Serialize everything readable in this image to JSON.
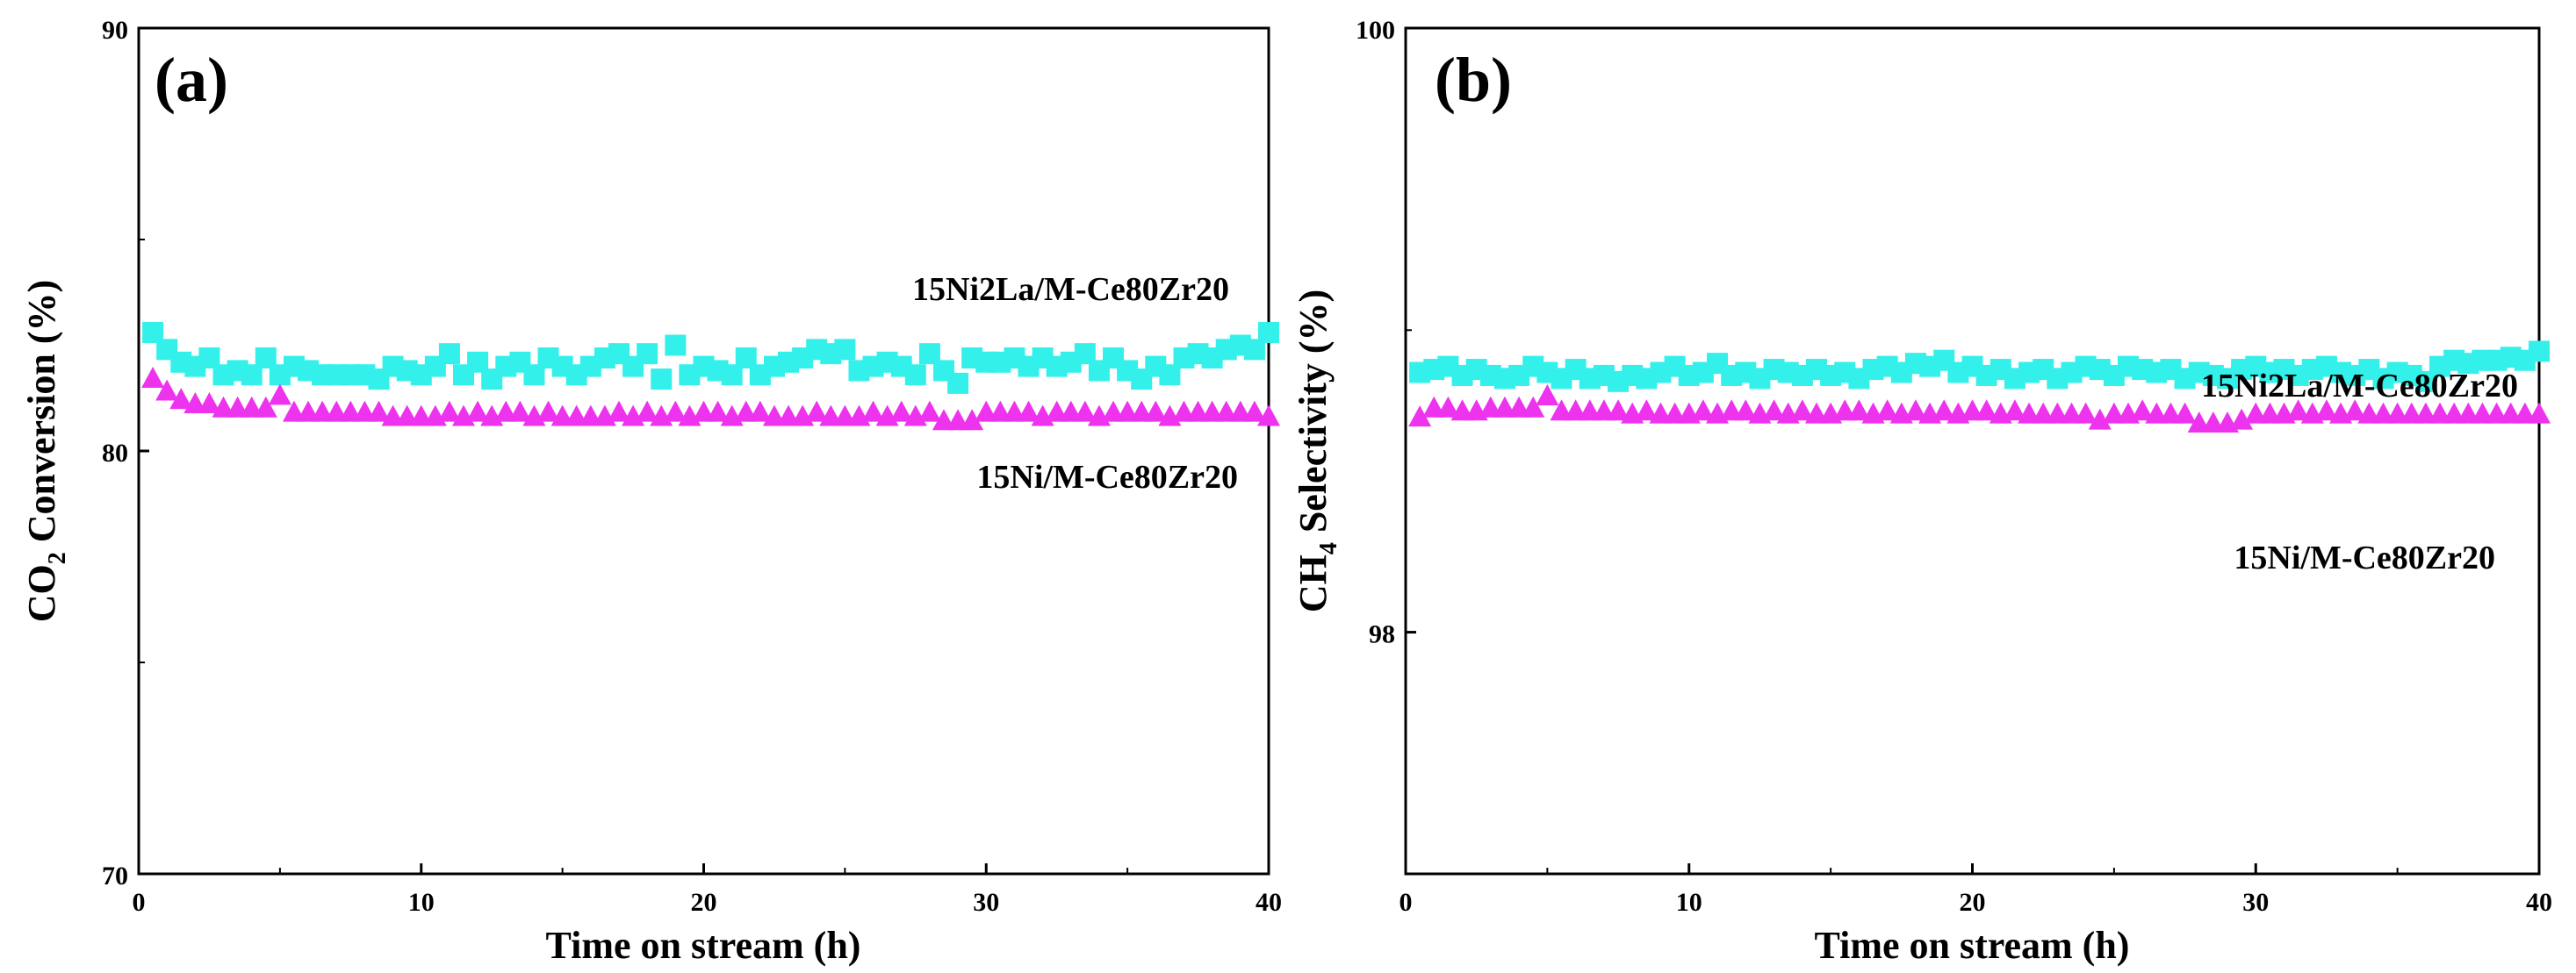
{
  "chart_data": [
    {
      "type": "scatter",
      "panel_label": "(a)",
      "xlabel": "Time on stream (h)",
      "ylabel": {
        "prefix": "CO",
        "sub": "2",
        "suffix": " Conversion (%)"
      },
      "xlim": [
        0,
        40
      ],
      "ylim": [
        70,
        90
      ],
      "xticks": [
        "0",
        "10",
        "20",
        "30",
        "40"
      ],
      "yticks": [
        "70",
        "80",
        "90"
      ],
      "series": [
        {
          "name": "15Ni2La/M-Ce80Zr20",
          "marker": "square",
          "color": "#33f0ea",
          "x": [
            0.5,
            1.0,
            1.5,
            2.0,
            2.5,
            3.0,
            3.5,
            4.0,
            4.5,
            5.0,
            5.5,
            6.0,
            6.5,
            7.0,
            7.5,
            8.0,
            8.5,
            9.0,
            9.5,
            10.0,
            10.5,
            11.0,
            11.5,
            12.0,
            12.5,
            13.0,
            13.5,
            14.0,
            14.5,
            15.0,
            15.5,
            16.0,
            16.5,
            17.0,
            17.5,
            18.0,
            18.5,
            19.0,
            19.5,
            20.0,
            20.5,
            21.0,
            21.5,
            22.0,
            22.5,
            23.0,
            23.5,
            24.0,
            24.5,
            25.0,
            25.5,
            26.0,
            26.5,
            27.0,
            27.5,
            28.0,
            28.5,
            29.0,
            29.5,
            30.0,
            30.5,
            31.0,
            31.5,
            32.0,
            32.5,
            33.0,
            33.5,
            34.0,
            34.5,
            35.0,
            35.5,
            36.0,
            36.5,
            37.0,
            37.5,
            38.0,
            38.5,
            39.0,
            39.5,
            40.0
          ],
          "values": [
            82.8,
            82.4,
            82.1,
            82.0,
            82.2,
            81.8,
            81.9,
            81.8,
            82.2,
            81.8,
            82.0,
            81.9,
            81.8,
            81.8,
            81.8,
            81.8,
            81.7,
            82.0,
            81.9,
            81.8,
            82.0,
            82.3,
            81.8,
            82.1,
            81.7,
            82.0,
            82.1,
            81.8,
            82.2,
            82.0,
            81.8,
            82.0,
            82.2,
            82.3,
            82.0,
            82.3,
            81.7,
            82.5,
            81.8,
            82.0,
            81.9,
            81.8,
            82.2,
            81.8,
            82.0,
            82.1,
            82.2,
            82.4,
            82.3,
            82.4,
            81.9,
            82.0,
            82.1,
            82.0,
            81.8,
            82.3,
            81.9,
            81.6,
            82.2,
            82.1,
            82.1,
            82.2,
            82.0,
            82.2,
            82.0,
            82.1,
            82.3,
            81.9,
            82.2,
            81.9,
            81.7,
            82.0,
            81.8,
            82.2,
            82.3,
            82.2,
            82.4,
            82.5,
            82.4,
            82.8
          ]
        },
        {
          "name": "15Ni/M-Ce80Zr20",
          "marker": "triangle",
          "color": "#ee33ee",
          "x": [
            0.5,
            1.0,
            1.5,
            2.0,
            2.5,
            3.0,
            3.5,
            4.0,
            4.5,
            5.0,
            5.5,
            6.0,
            6.5,
            7.0,
            7.5,
            8.0,
            8.5,
            9.0,
            9.5,
            10.0,
            10.5,
            11.0,
            11.5,
            12.0,
            12.5,
            13.0,
            13.5,
            14.0,
            14.5,
            15.0,
            15.5,
            16.0,
            16.5,
            17.0,
            17.5,
            18.0,
            18.5,
            19.0,
            19.5,
            20.0,
            20.5,
            21.0,
            21.5,
            22.0,
            22.5,
            23.0,
            23.5,
            24.0,
            24.5,
            25.0,
            25.5,
            26.0,
            26.5,
            27.0,
            27.5,
            28.0,
            28.5,
            29.0,
            29.5,
            30.0,
            30.5,
            31.0,
            31.5,
            32.0,
            32.5,
            33.0,
            33.5,
            34.0,
            34.5,
            35.0,
            35.5,
            36.0,
            36.5,
            37.0,
            37.5,
            38.0,
            38.5,
            39.0,
            39.5,
            40.0
          ],
          "values": [
            81.7,
            81.4,
            81.2,
            81.1,
            81.1,
            81.0,
            81.0,
            81.0,
            81.0,
            81.3,
            80.9,
            80.9,
            80.9,
            80.9,
            80.9,
            80.9,
            80.9,
            80.8,
            80.8,
            80.8,
            80.8,
            80.9,
            80.8,
            80.9,
            80.8,
            80.9,
            80.9,
            80.8,
            80.9,
            80.8,
            80.8,
            80.8,
            80.8,
            80.9,
            80.8,
            80.9,
            80.8,
            80.9,
            80.8,
            80.9,
            80.9,
            80.8,
            80.9,
            80.9,
            80.8,
            80.8,
            80.8,
            80.9,
            80.8,
            80.8,
            80.8,
            80.9,
            80.8,
            80.9,
            80.8,
            80.9,
            80.7,
            80.7,
            80.7,
            80.9,
            80.9,
            80.9,
            80.9,
            80.8,
            80.9,
            80.9,
            80.9,
            80.8,
            80.9,
            80.9,
            80.9,
            80.9,
            80.8,
            80.9,
            80.9,
            80.9,
            80.9,
            80.9,
            80.9,
            80.8
          ]
        }
      ]
    },
    {
      "type": "scatter",
      "panel_label": "(b)",
      "xlabel": "Time on stream (h)",
      "ylabel": {
        "prefix": "CH",
        "sub": "4",
        "suffix": " Selectivity (%)"
      },
      "xlim": [
        0,
        40
      ],
      "ylim": [
        97.2,
        100
      ],
      "xticks": [
        "0",
        "10",
        "20",
        "30",
        "40"
      ],
      "yticks": [
        "98",
        "100"
      ],
      "ytick_values": [
        98,
        100
      ],
      "series": [
        {
          "name": "15Ni2La/M-Ce80Zr20",
          "marker": "square",
          "color": "#33f0ea",
          "x": [
            0.5,
            1.0,
            1.5,
            2.0,
            2.5,
            3.0,
            3.5,
            4.0,
            4.5,
            5.0,
            5.5,
            6.0,
            6.5,
            7.0,
            7.5,
            8.0,
            8.5,
            9.0,
            9.5,
            10.0,
            10.5,
            11.0,
            11.5,
            12.0,
            12.5,
            13.0,
            13.5,
            14.0,
            14.5,
            15.0,
            15.5,
            16.0,
            16.5,
            17.0,
            17.5,
            18.0,
            18.5,
            19.0,
            19.5,
            20.0,
            20.5,
            21.0,
            21.5,
            22.0,
            22.5,
            23.0,
            23.5,
            24.0,
            24.5,
            25.0,
            25.5,
            26.0,
            26.5,
            27.0,
            27.5,
            28.0,
            28.5,
            29.0,
            29.5,
            30.0,
            30.5,
            31.0,
            31.5,
            32.0,
            32.5,
            33.0,
            33.5,
            34.0,
            34.5,
            35.0,
            35.5,
            36.0,
            36.5,
            37.0,
            37.5,
            38.0,
            38.5,
            39.0,
            39.5,
            40.0
          ],
          "values": [
            98.86,
            98.87,
            98.88,
            98.85,
            98.87,
            98.85,
            98.84,
            98.85,
            98.88,
            98.86,
            98.84,
            98.87,
            98.84,
            98.85,
            98.83,
            98.85,
            98.84,
            98.86,
            98.88,
            98.85,
            98.86,
            98.89,
            98.85,
            98.86,
            98.84,
            98.87,
            98.86,
            98.85,
            98.87,
            98.85,
            98.86,
            98.84,
            98.87,
            98.88,
            98.86,
            98.89,
            98.88,
            98.9,
            98.86,
            98.88,
            98.85,
            98.87,
            98.84,
            98.86,
            98.87,
            98.84,
            98.86,
            98.88,
            98.87,
            98.85,
            98.88,
            98.87,
            98.86,
            98.87,
            98.84,
            98.86,
            98.85,
            98.84,
            98.87,
            98.88,
            98.86,
            98.87,
            98.85,
            98.87,
            98.88,
            98.86,
            98.85,
            98.87,
            98.84,
            98.86,
            98.85,
            98.83,
            98.88,
            98.9,
            98.89,
            98.9,
            98.9,
            98.91,
            98.9,
            98.93
          ]
        },
        {
          "name": "15Ni/M-Ce80Zr20",
          "marker": "triangle",
          "color": "#ee33ee",
          "x": [
            0.5,
            1.0,
            1.5,
            2.0,
            2.5,
            3.0,
            3.5,
            4.0,
            4.5,
            5.0,
            5.5,
            6.0,
            6.5,
            7.0,
            7.5,
            8.0,
            8.5,
            9.0,
            9.5,
            10.0,
            10.5,
            11.0,
            11.5,
            12.0,
            12.5,
            13.0,
            13.5,
            14.0,
            14.5,
            15.0,
            15.5,
            16.0,
            16.5,
            17.0,
            17.5,
            18.0,
            18.5,
            19.0,
            19.5,
            20.0,
            20.5,
            21.0,
            21.5,
            22.0,
            22.5,
            23.0,
            23.5,
            24.0,
            24.5,
            25.0,
            25.5,
            26.0,
            26.5,
            27.0,
            27.5,
            28.0,
            28.5,
            29.0,
            29.5,
            30.0,
            30.5,
            31.0,
            31.5,
            32.0,
            32.5,
            33.0,
            33.5,
            34.0,
            34.5,
            35.0,
            35.5,
            36.0,
            36.5,
            37.0,
            37.5,
            38.0,
            38.5,
            39.0,
            39.5,
            40.0
          ],
          "values": [
            98.71,
            98.74,
            98.74,
            98.73,
            98.73,
            98.74,
            98.74,
            98.74,
            98.74,
            98.78,
            98.73,
            98.73,
            98.73,
            98.73,
            98.73,
            98.72,
            98.73,
            98.72,
            98.72,
            98.72,
            98.73,
            98.72,
            98.73,
            98.73,
            98.72,
            98.73,
            98.72,
            98.73,
            98.72,
            98.72,
            98.73,
            98.73,
            98.72,
            98.73,
            98.72,
            98.73,
            98.72,
            98.73,
            98.72,
            98.73,
            98.73,
            98.72,
            98.73,
            98.72,
            98.72,
            98.72,
            98.72,
            98.72,
            98.7,
            98.72,
            98.72,
            98.73,
            98.72,
            98.72,
            98.72,
            98.69,
            98.69,
            98.69,
            98.7,
            98.72,
            98.72,
            98.72,
            98.73,
            98.72,
            98.73,
            98.72,
            98.73,
            98.72,
            98.72,
            98.72,
            98.72,
            98.72,
            98.72,
            98.72,
            98.72,
            98.72,
            98.72,
            98.72,
            98.72,
            98.72
          ]
        }
      ]
    }
  ]
}
